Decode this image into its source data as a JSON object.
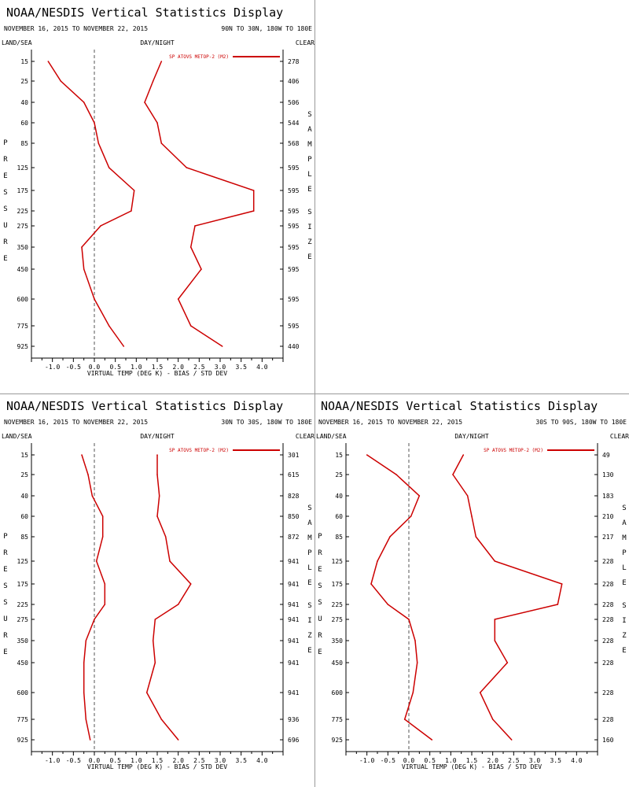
{
  "common": {
    "title": "NOAA/NESDIS Vertical Statistics Display",
    "dates": "NOVEMBER 16, 2015 TO NOVEMBER 22, 2015",
    "land_sea": "LAND/SEA",
    "day_night": "DAY/NIGHT",
    "clear": "CLEAR",
    "left_axis_label": "PRESSURE",
    "right_axis_label": "SAMPLE SIZE",
    "xlabel": "VIRTUAL TEMP (DEG K) - BIAS / STD DEV",
    "legend": "SP ATOVS METOP-2 (M2)",
    "line_color": "#cc0000"
  },
  "chart_data": [
    {
      "type": "line",
      "region": "90N TO 30N, 180W TO 180E",
      "pressure_levels": [
        15,
        25,
        40,
        60,
        85,
        125,
        175,
        225,
        275,
        350,
        450,
        600,
        775,
        925
      ],
      "bias": [
        -1.1,
        -0.8,
        -0.25,
        0.0,
        0.1,
        0.35,
        0.95,
        0.88,
        0.15,
        -0.3,
        -0.25,
        0.0,
        0.35,
        0.7
      ],
      "std_dev": [
        1.6,
        1.4,
        1.2,
        1.5,
        1.6,
        2.2,
        3.8,
        3.8,
        2.4,
        2.3,
        2.55,
        2.0,
        2.3,
        3.05
      ],
      "sample_size": [
        278,
        406,
        506,
        544,
        568,
        595,
        595,
        595,
        595,
        595,
        595,
        595,
        595,
        440
      ],
      "xticks": [
        "-1.0",
        "-0.5",
        "0.0",
        "0.5",
        "1.0",
        "1.5",
        "2.0",
        "2.5",
        "3.0",
        "3.5",
        "4.0"
      ],
      "xlim": [
        -1.5,
        4.5
      ]
    },
    {
      "type": "line",
      "region": "30N TO 30S, 180W TO 180E",
      "pressure_levels": [
        15,
        25,
        40,
        60,
        85,
        125,
        175,
        225,
        275,
        350,
        450,
        600,
        775,
        925
      ],
      "bias": [
        -0.3,
        -0.15,
        -0.05,
        0.2,
        0.2,
        0.05,
        0.25,
        0.25,
        0.0,
        -0.2,
        -0.25,
        -0.25,
        -0.2,
        -0.1
      ],
      "std_dev": [
        1.5,
        1.5,
        1.55,
        1.5,
        1.7,
        1.8,
        2.3,
        2.0,
        1.45,
        1.4,
        1.45,
        1.25,
        1.6,
        2.0
      ],
      "sample_size": [
        301,
        615,
        828,
        850,
        872,
        941,
        941,
        941,
        941,
        941,
        941,
        941,
        936,
        696
      ],
      "xticks": [
        "-1.0",
        "-0.5",
        "0.0",
        "0.5",
        "1.0",
        "1.5",
        "2.0",
        "2.5",
        "3.0",
        "3.5",
        "4.0"
      ],
      "xlim": [
        -1.5,
        4.5
      ]
    },
    {
      "type": "line",
      "region": "30S TO 90S, 180W TO 180E",
      "pressure_levels": [
        15,
        25,
        40,
        60,
        85,
        125,
        175,
        225,
        275,
        350,
        450,
        600,
        775,
        925
      ],
      "bias": [
        -1.0,
        -0.3,
        0.25,
        0.05,
        -0.45,
        -0.75,
        -0.9,
        -0.5,
        0.0,
        0.15,
        0.2,
        0.1,
        -0.1,
        0.55
      ],
      "std_dev": [
        1.3,
        1.05,
        1.4,
        1.5,
        1.6,
        2.05,
        3.65,
        3.55,
        2.05,
        2.05,
        2.35,
        1.7,
        2.0,
        2.45
      ],
      "sample_size": [
        49,
        130,
        183,
        210,
        217,
        228,
        228,
        228,
        228,
        228,
        228,
        228,
        228,
        160
      ],
      "xticks": [
        "-1.0",
        "-0.5",
        "0.0",
        "0.5",
        "1.0",
        "1.5",
        "2.0",
        "2.5",
        "3.0",
        "3.5",
        "4.0"
      ],
      "xlim": [
        -1.5,
        4.5
      ]
    }
  ]
}
